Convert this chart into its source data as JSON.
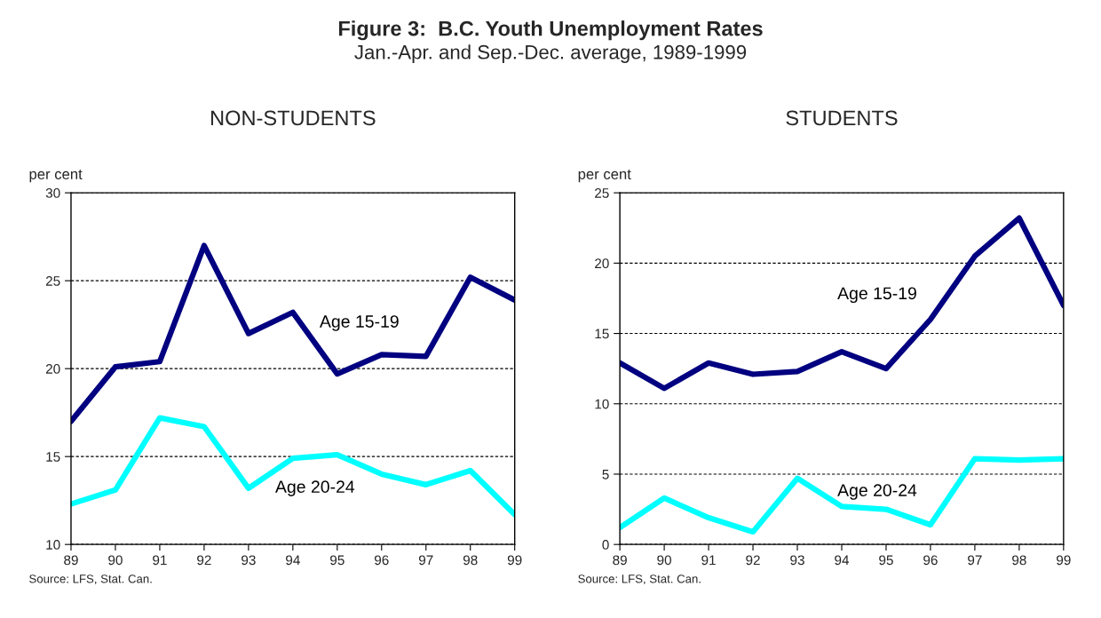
{
  "chart_data": [
    {
      "type": "line",
      "title": "NON-STUDENTS",
      "ylabel": "per cent",
      "annotations": [
        "Figure 3:  B.C. Youth Unemployment Rates",
        "Jan.-Apr. and Sep.-Dec. average, 1989-1999",
        "Source: LFS, Stat. Can."
      ],
      "x": [
        89,
        90,
        91,
        92,
        93,
        94,
        95,
        96,
        97,
        98,
        99
      ],
      "series": [
        {
          "name": "Age 15-19",
          "color": "#000080",
          "values": [
            17.0,
            20.1,
            20.4,
            27.0,
            22.0,
            23.2,
            19.7,
            20.8,
            20.7,
            25.2,
            23.9
          ]
        },
        {
          "name": "Age 20-24",
          "color": "#00ffff",
          "values": [
            12.3,
            13.1,
            17.2,
            16.7,
            13.2,
            14.9,
            15.1,
            14.0,
            13.4,
            14.2,
            11.7
          ]
        }
      ],
      "xlim": [
        89,
        99
      ],
      "xticks": [
        89,
        90,
        91,
        92,
        93,
        94,
        95,
        96,
        97,
        98,
        99
      ],
      "ylim": [
        10,
        30
      ],
      "yticks": [
        10,
        15,
        20,
        25,
        30
      ],
      "grid": "y",
      "legend": false,
      "marker": "none",
      "line_style": "solid"
    },
    {
      "type": "line",
      "title": "STUDENTS",
      "ylabel": "per cent",
      "annotations": [
        "Source: LFS, Stat. Can."
      ],
      "x": [
        89,
        90,
        91,
        92,
        93,
        94,
        95,
        96,
        97,
        98,
        99
      ],
      "series": [
        {
          "name": "Age 15-19",
          "color": "#000080",
          "values": [
            12.9,
            11.1,
            12.9,
            12.1,
            12.3,
            13.7,
            12.5,
            16.0,
            20.5,
            23.2,
            17.0
          ]
        },
        {
          "name": "Age 20-24",
          "color": "#00ffff",
          "values": [
            1.2,
            3.3,
            1.9,
            0.9,
            4.7,
            2.7,
            2.5,
            1.4,
            6.1,
            6.0,
            6.1
          ]
        }
      ],
      "xlim": [
        89,
        99
      ],
      "xticks": [
        89,
        90,
        91,
        92,
        93,
        94,
        95,
        96,
        97,
        98,
        99
      ],
      "ylim": [
        0,
        25
      ],
      "yticks": [
        0,
        5,
        10,
        15,
        20,
        25
      ],
      "grid": "y",
      "legend": false,
      "marker": "none",
      "line_style": "solid"
    }
  ]
}
